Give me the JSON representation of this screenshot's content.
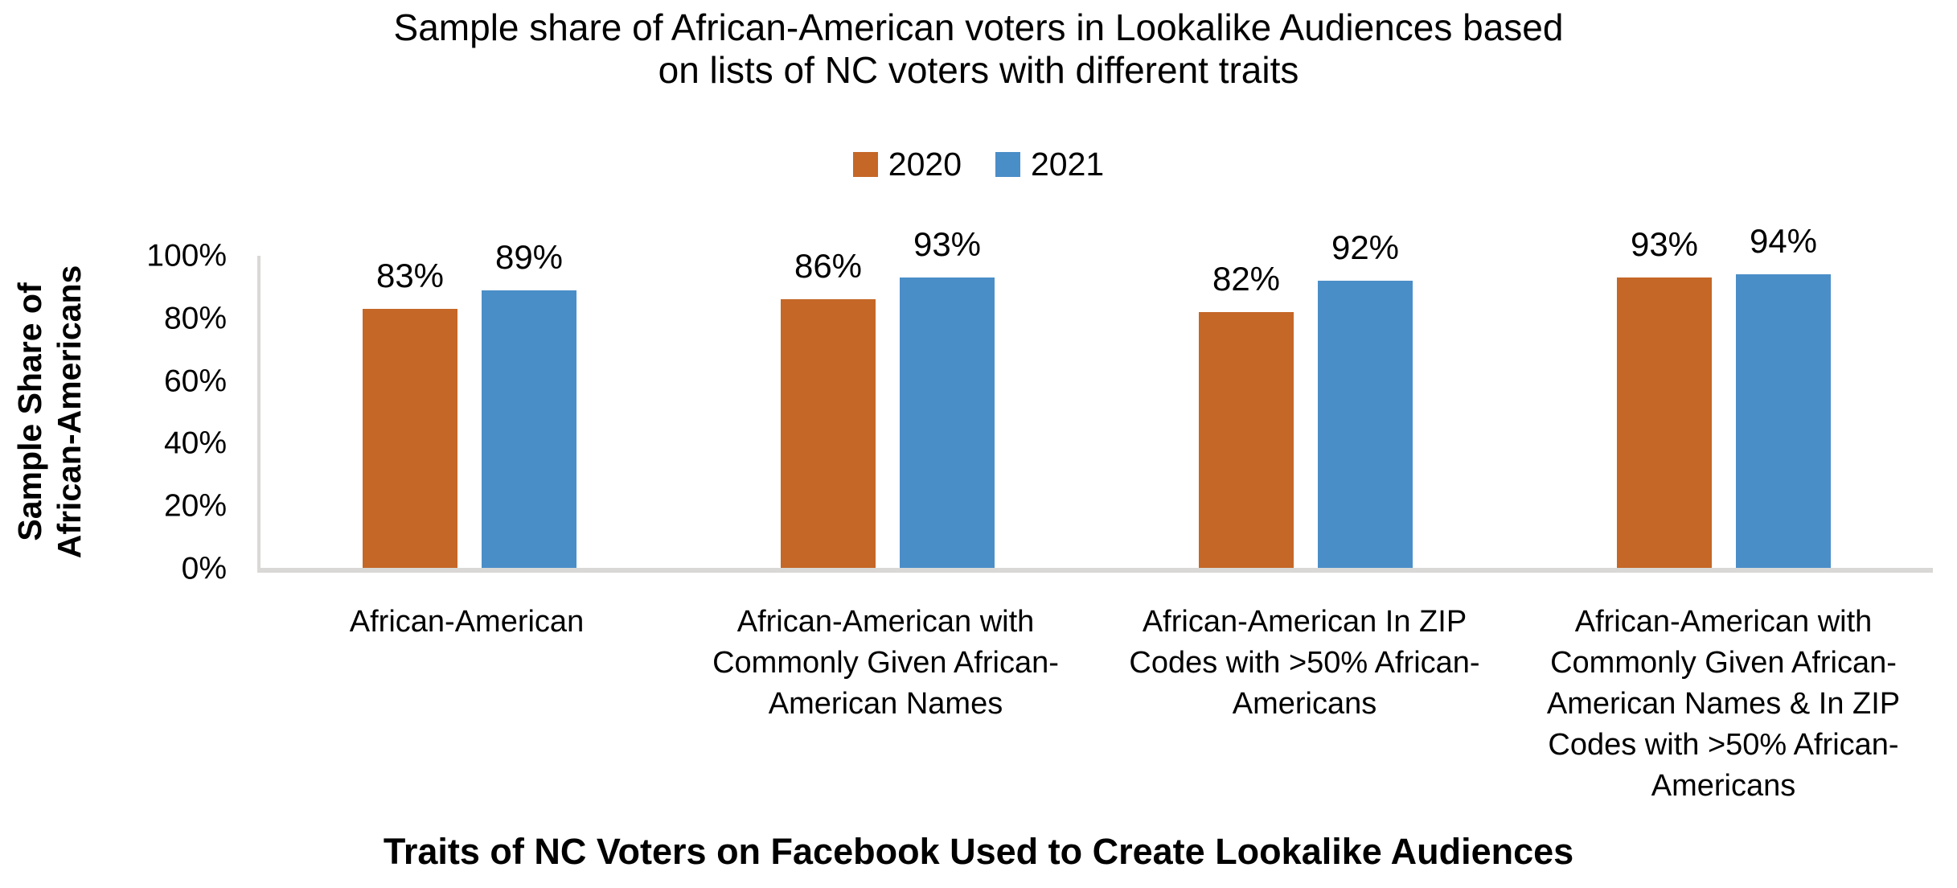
{
  "chart": {
    "title_lines": [
      "Sample share of African-American voters in Lookalike Audiences based",
      "on lists of NC voters with different traits"
    ],
    "y_axis": {
      "title_lines": [
        "Sample Share of",
        "African-Americans"
      ],
      "ticks": [
        "100%",
        "80%",
        "60%",
        "40%",
        "20%",
        "0%"
      ]
    },
    "x_axis": {
      "title": "Traits of NC Voters on Facebook Used to Create Lookalike Audiences"
    }
  },
  "chart_data": {
    "type": "bar",
    "title": "Sample share of African-American voters in Lookalike Audiences based on lists of NC voters with different traits",
    "categories": [
      "African-American",
      "African-American with Commonly Given African-American Names",
      "African-American In ZIP Codes with >50% African-Americans",
      "African-American with Commonly Given African-American Names & In ZIP Codes with >50% African-Americans"
    ],
    "series": [
      {
        "name": "2020",
        "color": "#C56727",
        "values": [
          83,
          86,
          82,
          93
        ]
      },
      {
        "name": "2021",
        "color": "#4A8EC8",
        "values": [
          89,
          93,
          92,
          94
        ]
      }
    ],
    "xlabel": "Traits of NC Voters on Facebook Used to Create Lookalike Audiences",
    "ylabel": "Sample Share of African-Americans",
    "ylim": [
      0,
      100
    ],
    "y_ticks_percent": [
      0,
      20,
      40,
      60,
      80,
      100
    ],
    "value_label_format": "percent",
    "data_labels": "outside-end",
    "legend_position": "top",
    "grid": false,
    "axis_line_color": "#D9D8D6"
  }
}
